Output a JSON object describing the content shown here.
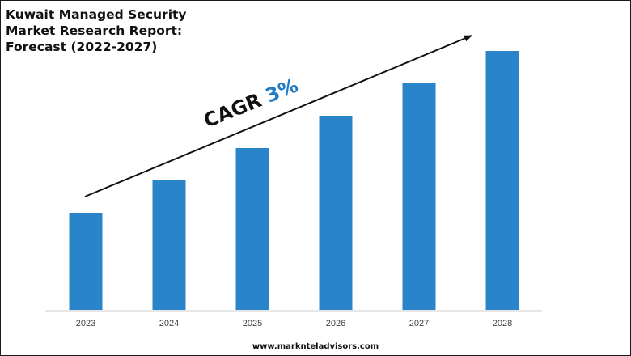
{
  "title_lines": [
    "Kuwait Managed Security",
    "Market Research Report:",
    "Forecast (2022-2027)"
  ],
  "cagr": {
    "label": "CAGR",
    "value": "3%"
  },
  "footer": {
    "url": "www.marknteladvisors.com"
  },
  "colors": {
    "bar": "#2a84c9",
    "cagr_value": "#1f7bc4",
    "arrow": "#111111"
  },
  "chart_data": {
    "type": "bar",
    "categories": [
      "2023",
      "2024",
      "2025",
      "2026",
      "2027",
      "2028"
    ],
    "values": [
      30,
      40,
      50,
      60,
      70,
      80
    ],
    "title": "Kuwait Managed Security Market Research Report: Forecast (2022-2027)",
    "xlabel": "",
    "ylabel": "",
    "ylim": [
      0,
      80
    ],
    "grid": false,
    "annotation": "CAGR 3%"
  }
}
